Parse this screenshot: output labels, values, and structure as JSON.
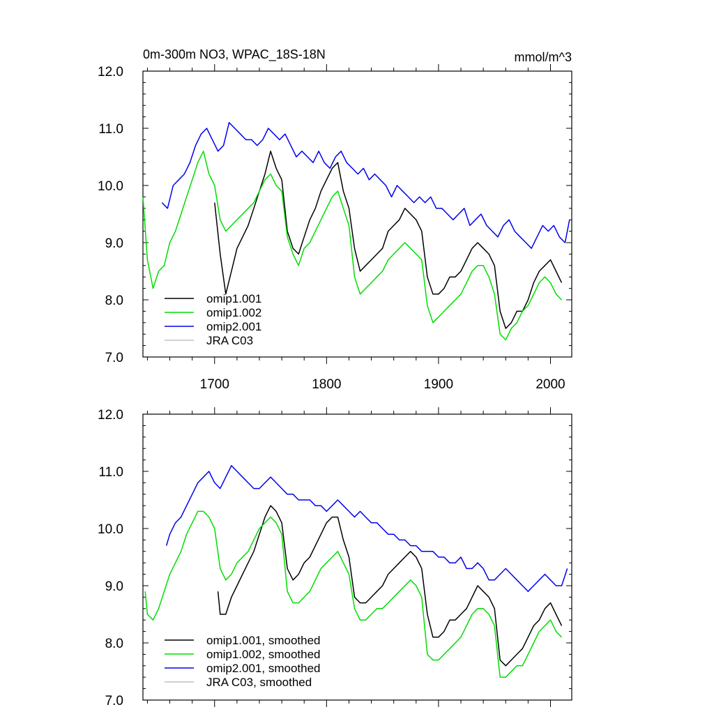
{
  "chart_data": [
    {
      "type": "line",
      "title": "0m-300m NO3, WPAC_18S-18N",
      "units": "mmol/m^3",
      "xlabel": "",
      "ylabel": "",
      "xlim": [
        1636,
        2019
      ],
      "ylim": [
        7.0,
        12.0
      ],
      "x_ticks": [
        1700,
        1800,
        1900,
        2000
      ],
      "y_ticks": [
        7.0,
        8.0,
        9.0,
        10.0,
        11.0,
        12.0
      ],
      "legend_position": "bottom-left",
      "series": [
        {
          "name": "omip1.001",
          "color": "#000000",
          "x": [
            1700,
            1705,
            1710,
            1715,
            1720,
            1725,
            1730,
            1735,
            1740,
            1745,
            1750,
            1755,
            1760,
            1765,
            1770,
            1775,
            1780,
            1785,
            1790,
            1795,
            1800,
            1805,
            1810,
            1815,
            1820,
            1825,
            1830,
            1835,
            1840,
            1845,
            1850,
            1855,
            1860,
            1865,
            1870,
            1875,
            1880,
            1885,
            1890,
            1895,
            1900,
            1905,
            1910,
            1915,
            1920,
            1925,
            1930,
            1935,
            1940,
            1945,
            1950,
            1955,
            1960,
            1965,
            1970,
            1975,
            1980,
            1985,
            1990,
            1995,
            2000,
            2005,
            2010
          ],
          "values": [
            9.7,
            8.8,
            8.1,
            8.5,
            8.9,
            9.1,
            9.3,
            9.6,
            9.9,
            10.2,
            10.6,
            10.3,
            10.1,
            9.2,
            8.9,
            8.8,
            9.1,
            9.4,
            9.6,
            9.9,
            10.1,
            10.3,
            10.4,
            9.9,
            9.6,
            8.9,
            8.5,
            8.6,
            8.7,
            8.8,
            8.9,
            9.2,
            9.3,
            9.4,
            9.6,
            9.5,
            9.4,
            9.2,
            8.4,
            8.1,
            8.1,
            8.2,
            8.4,
            8.4,
            8.5,
            8.7,
            8.9,
            9.0,
            8.9,
            8.8,
            8.6,
            7.8,
            7.5,
            7.6,
            7.8,
            7.8,
            8.0,
            8.3,
            8.5,
            8.6,
            8.7,
            8.5,
            8.3
          ]
        },
        {
          "name": "omip1.002",
          "color": "#00dd00",
          "x": [
            1636,
            1640,
            1645,
            1650,
            1655,
            1660,
            1665,
            1670,
            1675,
            1680,
            1685,
            1690,
            1695,
            1700,
            1705,
            1710,
            1715,
            1720,
            1725,
            1730,
            1735,
            1740,
            1745,
            1750,
            1755,
            1760,
            1765,
            1770,
            1775,
            1780,
            1785,
            1790,
            1795,
            1800,
            1805,
            1810,
            1815,
            1820,
            1825,
            1830,
            1835,
            1840,
            1845,
            1850,
            1855,
            1860,
            1865,
            1870,
            1875,
            1880,
            1885,
            1890,
            1895,
            1900,
            1905,
            1910,
            1915,
            1920,
            1925,
            1930,
            1935,
            1940,
            1945,
            1950,
            1955,
            1960,
            1965,
            1970,
            1975,
            1980,
            1985,
            1990,
            1995,
            2000,
            2005,
            2010
          ],
          "values": [
            9.8,
            8.7,
            8.2,
            8.5,
            8.6,
            9.0,
            9.2,
            9.5,
            9.8,
            10.1,
            10.4,
            10.6,
            10.2,
            10.0,
            9.4,
            9.2,
            9.3,
            9.4,
            9.5,
            9.6,
            9.7,
            9.9,
            10.1,
            10.2,
            10.0,
            9.9,
            9.1,
            8.8,
            8.6,
            8.9,
            9.0,
            9.2,
            9.4,
            9.6,
            9.8,
            9.9,
            9.6,
            9.3,
            8.4,
            8.1,
            8.2,
            8.3,
            8.4,
            8.5,
            8.7,
            8.8,
            8.9,
            9.0,
            8.9,
            8.8,
            8.7,
            7.9,
            7.6,
            7.7,
            7.8,
            7.9,
            8.0,
            8.1,
            8.3,
            8.5,
            8.6,
            8.6,
            8.4,
            8.1,
            7.4,
            7.3,
            7.5,
            7.6,
            7.8,
            7.9,
            8.1,
            8.3,
            8.4,
            8.3,
            8.1,
            8.0
          ]
        },
        {
          "name": "omip2.001",
          "color": "#0000ee",
          "x": [
            1653,
            1658,
            1663,
            1668,
            1673,
            1678,
            1683,
            1688,
            1693,
            1698,
            1703,
            1708,
            1713,
            1718,
            1723,
            1728,
            1733,
            1738,
            1743,
            1748,
            1753,
            1758,
            1763,
            1768,
            1773,
            1778,
            1783,
            1788,
            1793,
            1798,
            1803,
            1808,
            1813,
            1818,
            1823,
            1828,
            1833,
            1838,
            1843,
            1848,
            1853,
            1858,
            1863,
            1868,
            1873,
            1878,
            1883,
            1888,
            1893,
            1898,
            1903,
            1908,
            1913,
            1918,
            1923,
            1928,
            1933,
            1938,
            1943,
            1948,
            1953,
            1958,
            1963,
            1968,
            1973,
            1978,
            1983,
            1988,
            1993,
            1998,
            2003,
            2008,
            2013,
            2017
          ],
          "values": [
            9.7,
            9.6,
            10.0,
            10.1,
            10.2,
            10.4,
            10.7,
            10.9,
            11.0,
            10.8,
            10.6,
            10.7,
            11.1,
            11.0,
            10.9,
            10.8,
            10.8,
            10.7,
            10.8,
            11.0,
            10.9,
            10.8,
            10.9,
            10.7,
            10.5,
            10.6,
            10.5,
            10.4,
            10.6,
            10.4,
            10.3,
            10.5,
            10.6,
            10.4,
            10.3,
            10.2,
            10.3,
            10.1,
            10.2,
            10.1,
            10.0,
            9.8,
            10.0,
            9.9,
            9.8,
            9.7,
            9.8,
            9.7,
            9.8,
            9.6,
            9.6,
            9.5,
            9.4,
            9.5,
            9.6,
            9.3,
            9.4,
            9.5,
            9.3,
            9.2,
            9.1,
            9.3,
            9.4,
            9.2,
            9.1,
            9.0,
            8.9,
            9.1,
            9.3,
            9.2,
            9.3,
            9.1,
            9.0,
            9.4
          ]
        },
        {
          "name": "JRA C03",
          "color": "#c0c0c0",
          "x": [],
          "values": []
        }
      ]
    },
    {
      "type": "line",
      "title": "",
      "units": "",
      "xlabel": "",
      "ylabel": "",
      "xlim": [
        1636,
        2019
      ],
      "ylim": [
        7.0,
        12.0
      ],
      "x_ticks": [],
      "y_ticks": [
        7.0,
        8.0,
        9.0,
        10.0,
        11.0,
        12.0
      ],
      "legend_position": "bottom-left",
      "series": [
        {
          "name": "omip1.001, smoothed",
          "color": "#000000",
          "x": [
            1703,
            1705,
            1710,
            1715,
            1720,
            1725,
            1730,
            1735,
            1740,
            1745,
            1750,
            1755,
            1760,
            1765,
            1770,
            1775,
            1780,
            1785,
            1790,
            1795,
            1800,
            1805,
            1810,
            1815,
            1820,
            1825,
            1830,
            1835,
            1840,
            1845,
            1850,
            1855,
            1860,
            1865,
            1870,
            1875,
            1880,
            1885,
            1890,
            1895,
            1900,
            1905,
            1910,
            1915,
            1920,
            1925,
            1930,
            1935,
            1940,
            1945,
            1950,
            1955,
            1960,
            1965,
            1970,
            1975,
            1980,
            1985,
            1990,
            1995,
            2000,
            2005,
            2010
          ],
          "values": [
            8.9,
            8.5,
            8.5,
            8.8,
            9.0,
            9.2,
            9.4,
            9.6,
            9.9,
            10.2,
            10.4,
            10.3,
            10.1,
            9.3,
            9.1,
            9.2,
            9.4,
            9.5,
            9.7,
            9.9,
            10.1,
            10.2,
            10.2,
            9.8,
            9.5,
            8.8,
            8.7,
            8.7,
            8.8,
            8.9,
            9.0,
            9.2,
            9.3,
            9.4,
            9.5,
            9.6,
            9.5,
            9.3,
            8.5,
            8.1,
            8.1,
            8.2,
            8.4,
            8.4,
            8.5,
            8.6,
            8.8,
            9.0,
            8.9,
            8.8,
            8.6,
            7.7,
            7.6,
            7.7,
            7.8,
            7.9,
            8.1,
            8.3,
            8.4,
            8.6,
            8.7,
            8.5,
            8.3
          ]
        },
        {
          "name": "omip1.002, smoothed",
          "color": "#00dd00",
          "x": [
            1638,
            1640,
            1645,
            1650,
            1655,
            1660,
            1665,
            1670,
            1675,
            1680,
            1685,
            1690,
            1695,
            1700,
            1705,
            1710,
            1715,
            1720,
            1725,
            1730,
            1735,
            1740,
            1745,
            1750,
            1755,
            1760,
            1765,
            1770,
            1775,
            1780,
            1785,
            1790,
            1795,
            1800,
            1805,
            1810,
            1815,
            1820,
            1825,
            1830,
            1835,
            1840,
            1845,
            1850,
            1855,
            1860,
            1865,
            1870,
            1875,
            1880,
            1885,
            1890,
            1895,
            1900,
            1905,
            1910,
            1915,
            1920,
            1925,
            1930,
            1935,
            1940,
            1945,
            1950,
            1955,
            1960,
            1965,
            1970,
            1975,
            1980,
            1985,
            1990,
            1995,
            2000,
            2005,
            2010
          ],
          "values": [
            8.9,
            8.5,
            8.4,
            8.6,
            8.9,
            9.2,
            9.4,
            9.6,
            9.9,
            10.1,
            10.3,
            10.3,
            10.2,
            10.0,
            9.3,
            9.1,
            9.2,
            9.4,
            9.5,
            9.6,
            9.8,
            10.0,
            10.1,
            10.2,
            10.1,
            9.9,
            8.9,
            8.7,
            8.7,
            8.8,
            8.9,
            9.1,
            9.3,
            9.4,
            9.5,
            9.6,
            9.4,
            9.2,
            8.6,
            8.4,
            8.4,
            8.5,
            8.6,
            8.6,
            8.7,
            8.8,
            8.9,
            9.0,
            9.1,
            9.0,
            8.8,
            7.8,
            7.7,
            7.7,
            7.8,
            7.9,
            8.0,
            8.1,
            8.3,
            8.5,
            8.6,
            8.6,
            8.5,
            8.3,
            7.4,
            7.4,
            7.5,
            7.6,
            7.6,
            7.8,
            8.0,
            8.2,
            8.3,
            8.4,
            8.2,
            8.1
          ]
        },
        {
          "name": "omip2.001, smoothed",
          "color": "#0000ee",
          "x": [
            1657,
            1660,
            1665,
            1670,
            1675,
            1680,
            1685,
            1690,
            1695,
            1700,
            1705,
            1710,
            1715,
            1720,
            1725,
            1730,
            1735,
            1740,
            1745,
            1750,
            1755,
            1760,
            1765,
            1770,
            1775,
            1780,
            1785,
            1790,
            1795,
            1800,
            1805,
            1810,
            1815,
            1820,
            1825,
            1830,
            1835,
            1840,
            1845,
            1850,
            1855,
            1860,
            1865,
            1870,
            1875,
            1880,
            1885,
            1890,
            1895,
            1900,
            1905,
            1910,
            1915,
            1920,
            1925,
            1930,
            1935,
            1940,
            1945,
            1950,
            1955,
            1960,
            1965,
            1970,
            1975,
            1980,
            1985,
            1990,
            1995,
            2000,
            2005,
            2010,
            2015
          ],
          "values": [
            9.7,
            9.9,
            10.1,
            10.2,
            10.4,
            10.6,
            10.8,
            10.9,
            11.0,
            10.8,
            10.7,
            10.9,
            11.1,
            11.0,
            10.9,
            10.8,
            10.7,
            10.7,
            10.8,
            10.9,
            10.8,
            10.7,
            10.6,
            10.6,
            10.5,
            10.5,
            10.5,
            10.4,
            10.4,
            10.3,
            10.4,
            10.5,
            10.4,
            10.3,
            10.2,
            10.3,
            10.2,
            10.1,
            10.1,
            10.0,
            9.9,
            9.9,
            9.8,
            9.8,
            9.7,
            9.7,
            9.6,
            9.6,
            9.6,
            9.5,
            9.5,
            9.4,
            9.4,
            9.5,
            9.3,
            9.3,
            9.4,
            9.3,
            9.1,
            9.1,
            9.2,
            9.3,
            9.2,
            9.1,
            9.0,
            8.9,
            9.0,
            9.1,
            9.2,
            9.1,
            9.0,
            9.0,
            9.3
          ]
        },
        {
          "name": "JRA C03, smoothed",
          "color": "#c0c0c0",
          "x": [],
          "values": []
        }
      ]
    }
  ]
}
